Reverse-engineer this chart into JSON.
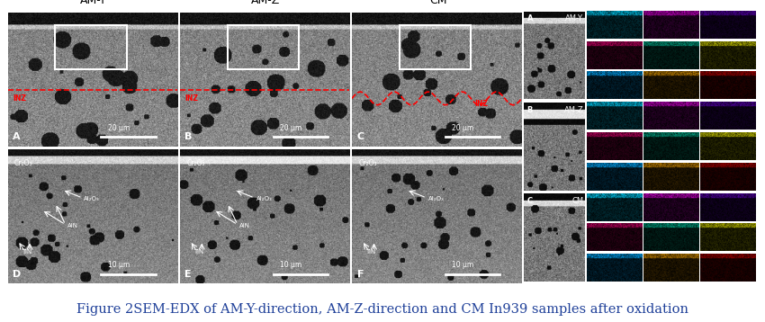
{
  "figure_width": 8.5,
  "figure_height": 3.58,
  "dpi": 100,
  "background_color": "#ffffff",
  "caption": "Figure 2SEM-EDX of AM-Y-direction, AM-Z-direction and CM In939 samples after oxidation",
  "caption_color": "#1f4099",
  "caption_fontsize": 10.5,
  "panel_labels": [
    "A",
    "B",
    "C",
    "D",
    "E",
    "F"
  ],
  "top_titles": [
    "AM-Y",
    "AM-Z",
    "CM"
  ],
  "scale_bar_top": "20 μm",
  "scale_bar_bottom": "10 μm",
  "inz_label": "INZ",
  "cr2o3_label": "Cr₂O₃",
  "al2o3_label": "Al₂O₃",
  "aln_label": "AlN",
  "tin_label": "TiN",
  "sample_labels_right": [
    "AM-Y",
    "AM-Z",
    "CM"
  ],
  "panel_labels_right": [
    "A",
    "B",
    "C"
  ],
  "edx_colors": [
    [
      [
        "#00d4ff",
        "#cc00cc",
        "#5500aa"
      ],
      [
        "#cc0066",
        "#00aa88",
        "#cccc00"
      ],
      [
        "#00aaff",
        "#cc8800",
        "#aa0000"
      ]
    ],
    [
      [
        "#00d4ff",
        "#cc00cc",
        "#5500aa"
      ],
      [
        "#cc0066",
        "#00aa88",
        "#cccc00"
      ],
      [
        "#00aaff",
        "#cc8800",
        "#aa0000"
      ]
    ],
    [
      [
        "#00d4ff",
        "#cc00cc",
        "#5500aa"
      ],
      [
        "#cc0066",
        "#00aa88",
        "#cccc00"
      ],
      [
        "#00aaff",
        "#cc8800",
        "#aa0000"
      ]
    ]
  ]
}
